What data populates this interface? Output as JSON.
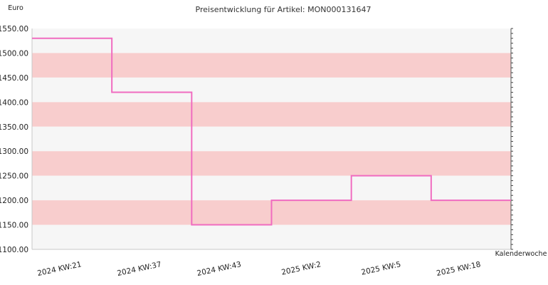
{
  "chart_data": {
    "type": "line",
    "title": "Preisentwicklung für Artikel: MON000131647",
    "ylabel": "Euro",
    "xlabel": "Kalenderwoche",
    "ylim": [
      1100,
      1550
    ],
    "yticks": [
      "1550.00",
      "1500.00",
      "1450.00",
      "1400.00",
      "1350.00",
      "1300.00",
      "1250.00",
      "1200.00",
      "1150.00",
      "1100.00"
    ],
    "x_tick_labels": [
      "2024 KW:21",
      "2024 KW:37",
      "2024 KW:43",
      "2025 KW:2",
      "2025 KW:5",
      "2025 KW:18"
    ],
    "step": true,
    "grid": true,
    "series": [
      {
        "color": "#f06cc0",
        "values": [
          1530,
          1420,
          1150,
          1200,
          1250,
          1200
        ]
      }
    ],
    "colors": {
      "band_light": "#f6f6f6",
      "band_dark": "#f8cdcd",
      "axis": "#c8c8c8"
    }
  }
}
